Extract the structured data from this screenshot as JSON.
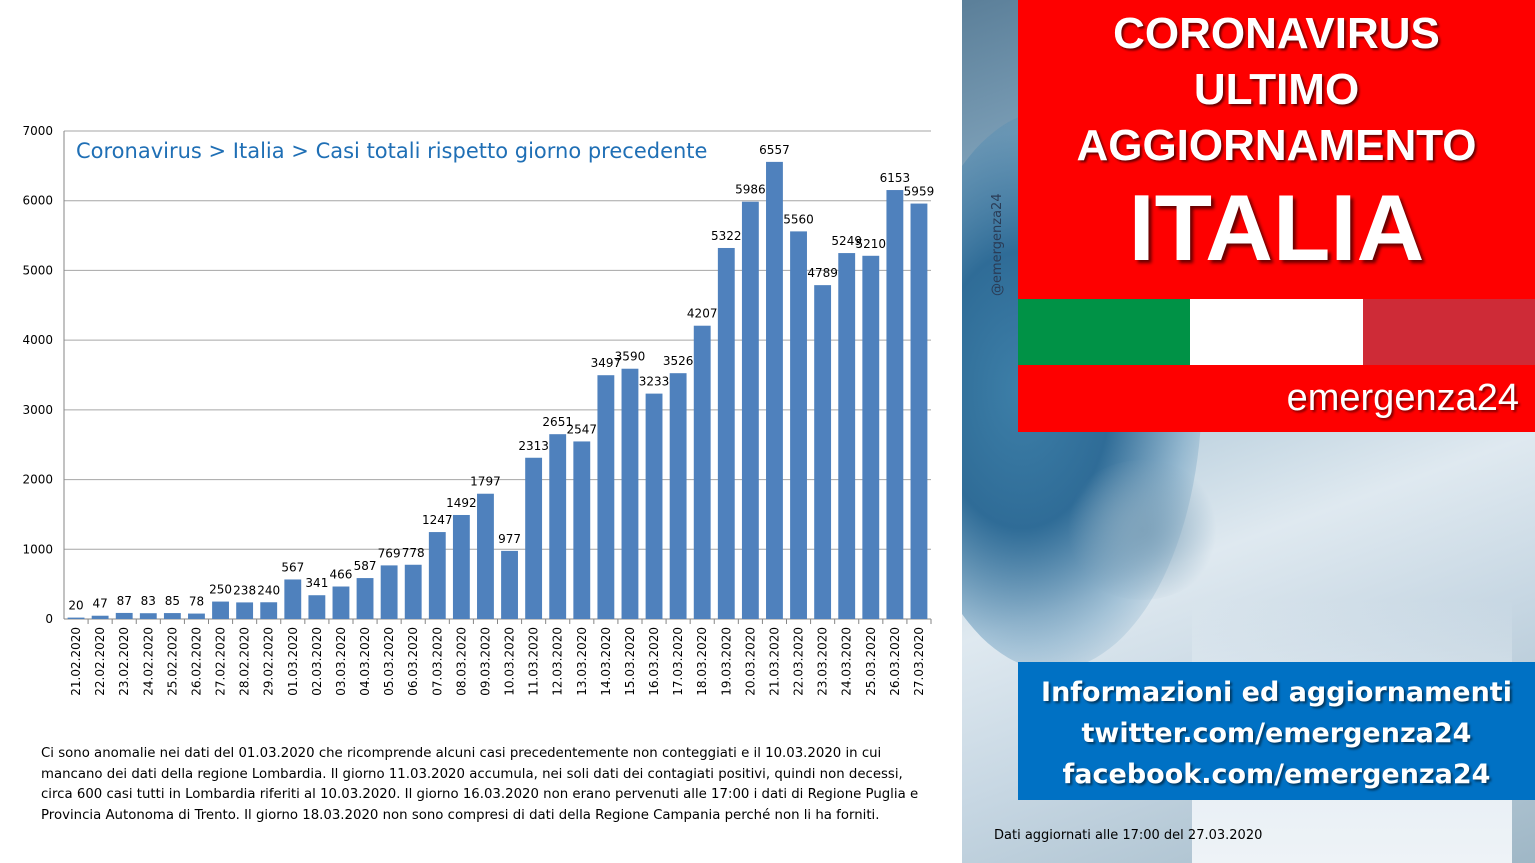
{
  "chart_data": {
    "type": "bar",
    "title": "Coronavirus > Italia > Casi totali rispetto giorno precedente",
    "categories": [
      "21.02.2020",
      "22.02.2020",
      "23.02.2020",
      "24.02.2020",
      "25.02.2020",
      "26.02.2020",
      "27.02.2020",
      "28.02.2020",
      "29.02.2020",
      "01.03.2020",
      "02.03.2020",
      "03.03.2020",
      "04.03.2020",
      "05.03.2020",
      "06.03.2020",
      "07.03.2020",
      "08.03.2020",
      "09.03.2020",
      "10.03.2020",
      "11.03.2020",
      "12.03.2020",
      "13.03.2020",
      "14.03.2020",
      "15.03.2020",
      "16.03.2020",
      "17.03.2020",
      "18.03.2020",
      "19.03.2020",
      "20.03.2020",
      "21.03.2020",
      "22.03.2020",
      "23.03.2020",
      "24.03.2020",
      "25.03.2020",
      "26.03.2020",
      "27.03.2020"
    ],
    "values": [
      20,
      47,
      87,
      83,
      85,
      78,
      250,
      238,
      240,
      567,
      341,
      466,
      587,
      769,
      778,
      1247,
      1492,
      1797,
      977,
      2313,
      2651,
      2547,
      3497,
      3590,
      3233,
      3526,
      4207,
      5322,
      5986,
      6557,
      5560,
      4789,
      5249,
      5210,
      6153,
      5959
    ],
    "ylim": [
      0,
      7000
    ],
    "yticks": [
      0,
      1000,
      2000,
      3000,
      4000,
      5000,
      6000,
      7000
    ],
    "grid": true,
    "bar_color": "#4f81bd"
  },
  "note": "Ci sono anomalie nei dati del 01.03.2020 che ricomprende alcuni casi precedentemente non conteggiati e il 10.03.2020 in cui mancano dei dati della regione Lombardia. Il giorno 11.03.2020 accumula, nei soli dati dei contagiati positivi, quindi non decessi, circa 600 casi tutti in Lombardia riferiti al 10.03.2020. Il giorno 16.03.2020 non erano pervenuti alle 17:00 i dati di Regione Puglia e Provincia Autonoma di Trento. Il giorno 18.03.2020 non sono compresi di dati della Regione Campania perché non li ha forniti.",
  "watermark": "@emergenza24",
  "headline": {
    "line1": "CORONAVIRUS",
    "line2": "ULTIMO",
    "line3": "AGGIORNAMENTO",
    "country": "ITALIA"
  },
  "flag_colors": [
    "#009246",
    "#ffffff",
    "#ce2b37"
  ],
  "brand": "emergenza24",
  "info": {
    "line1": "Informazioni ed aggiornamenti",
    "line2": "twitter.com/emergenza24",
    "line3": "facebook.com/emergenza24"
  },
  "updated": "Dati aggiornati alle 17:00 del 27.03.2020"
}
